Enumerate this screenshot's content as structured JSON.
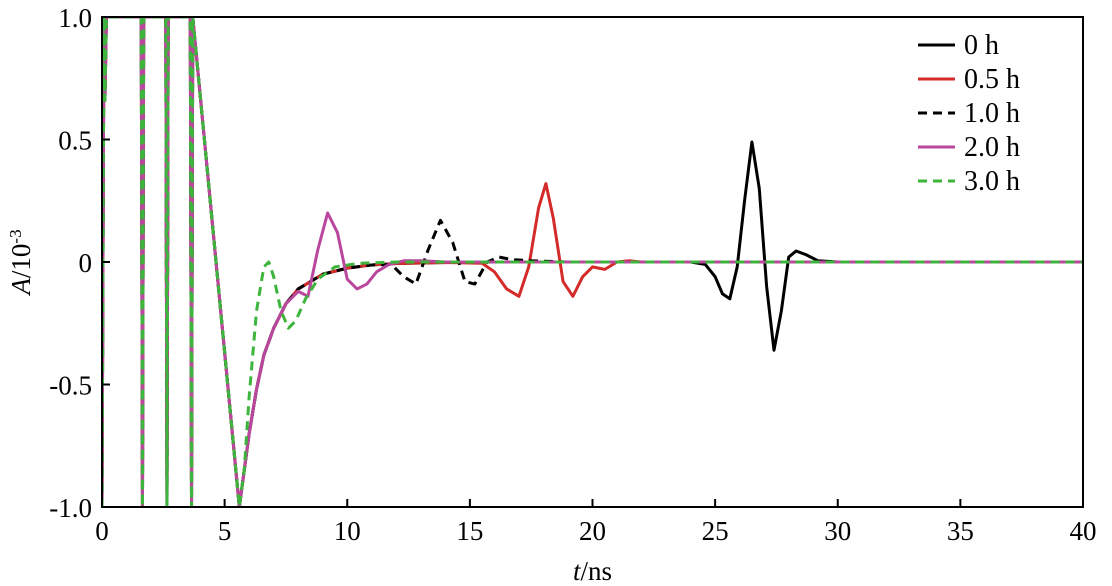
{
  "chart_data": {
    "type": "line",
    "xlabel_var": "t",
    "xlabel_unit": "/ns",
    "ylabel_var": "A",
    "ylabel_unit": "/10",
    "ylabel_exp": "-3",
    "xlim": [
      0,
      40
    ],
    "ylim": [
      -1.0,
      1.0
    ],
    "xticks": [
      0,
      5,
      10,
      15,
      20,
      25,
      30,
      35,
      40
    ],
    "xtick_labels": [
      "0",
      "5",
      "10",
      "15",
      "20",
      "25",
      "30",
      "35",
      "40"
    ],
    "yticks": [
      -1.0,
      -0.5,
      0,
      0.5,
      1.0
    ],
    "ytick_labels": [
      "-1.0",
      "-0.5",
      "0",
      "0.5",
      "1.0"
    ],
    "grid": false,
    "legend_position": "top-right",
    "series": [
      {
        "name": "0 h",
        "color": "#000000",
        "dash": "solid",
        "x": [
          0,
          0.08,
          0.12,
          0.18,
          1.6,
          1.65,
          1.7,
          2.6,
          2.65,
          2.7,
          3.6,
          3.65,
          3.7,
          5.6,
          5.8,
          6.0,
          6.3,
          6.6,
          7.0,
          7.5,
          8.0,
          8.5,
          9.0,
          10.0,
          11.0,
          12.0,
          14.0,
          16.0,
          18.0,
          20.0,
          22.0,
          24.0,
          24.6,
          25.0,
          25.3,
          25.6,
          25.9,
          26.2,
          26.5,
          26.8,
          27.1,
          27.4,
          27.7,
          28.0,
          28.3,
          28.7,
          29.2,
          30.0,
          35.0,
          40.0
        ],
        "y": [
          -1.0,
          1.0,
          0.66,
          1.0,
          1.0,
          -1.0,
          1.0,
          1.0,
          -1.0,
          1.0,
          1.0,
          -1.0,
          1.0,
          -1.0,
          -0.85,
          -0.7,
          -0.52,
          -0.38,
          -0.27,
          -0.17,
          -0.11,
          -0.08,
          -0.05,
          -0.025,
          -0.012,
          -0.006,
          -0.002,
          0,
          0,
          0,
          0,
          0,
          -0.01,
          -0.06,
          -0.13,
          -0.15,
          -0.02,
          0.25,
          0.49,
          0.3,
          -0.1,
          -0.36,
          -0.2,
          0.02,
          0.045,
          0.03,
          0.005,
          0,
          0,
          0
        ]
      },
      {
        "name": "0.5 h",
        "color": "#d42a2a",
        "dash": "solid",
        "x": [
          0,
          0.08,
          0.12,
          0.18,
          1.6,
          1.65,
          1.7,
          2.6,
          2.65,
          2.7,
          3.6,
          3.65,
          3.7,
          5.6,
          5.8,
          6.0,
          6.3,
          6.6,
          7.0,
          7.5,
          8.0,
          8.5,
          9.0,
          10.0,
          11.0,
          12.0,
          14.0,
          15.5,
          16.0,
          16.5,
          17.0,
          17.4,
          17.8,
          18.1,
          18.4,
          18.8,
          19.2,
          19.6,
          20.0,
          20.5,
          21.0,
          21.5,
          22.0,
          25.0,
          30.0,
          40.0
        ],
        "y": [
          -1.0,
          1.0,
          0.66,
          1.0,
          1.0,
          -1.0,
          1.0,
          1.0,
          -1.0,
          1.0,
          1.0,
          -1.0,
          1.0,
          -1.0,
          -0.85,
          -0.7,
          -0.52,
          -0.38,
          -0.27,
          -0.17,
          -0.11,
          -0.08,
          -0.05,
          -0.025,
          -0.012,
          -0.006,
          -0.002,
          -0.005,
          -0.04,
          -0.11,
          -0.14,
          -0.02,
          0.22,
          0.32,
          0.18,
          -0.08,
          -0.14,
          -0.06,
          -0.02,
          -0.03,
          0.0,
          0.005,
          0,
          0,
          0,
          0
        ]
      },
      {
        "name": "1.0 h",
        "color": "#000000",
        "dash": "dashed",
        "x": [
          0,
          0.08,
          0.12,
          0.18,
          1.6,
          1.65,
          1.7,
          2.6,
          2.65,
          2.7,
          3.6,
          3.65,
          3.7,
          5.6,
          5.8,
          6.0,
          6.3,
          6.6,
          7.0,
          7.5,
          8.0,
          8.5,
          9.0,
          10.0,
          11.0,
          11.8,
          12.3,
          12.8,
          13.3,
          13.8,
          14.3,
          14.8,
          15.2,
          15.7,
          16.2,
          16.7,
          17.5,
          19.0,
          21.0,
          23.0,
          25.0,
          30.0,
          40.0
        ],
        "y": [
          -1.0,
          1.0,
          0.66,
          1.0,
          1.0,
          -1.0,
          1.0,
          1.0,
          -1.0,
          1.0,
          1.0,
          -1.0,
          1.0,
          -1.0,
          -0.85,
          -0.7,
          -0.52,
          -0.38,
          -0.27,
          -0.17,
          -0.11,
          -0.08,
          -0.05,
          -0.025,
          -0.012,
          -0.01,
          -0.06,
          -0.09,
          0.05,
          0.17,
          0.08,
          -0.08,
          -0.09,
          0.0,
          0.02,
          0.01,
          0.005,
          0.0,
          0.0,
          0.0,
          0,
          0,
          0
        ]
      },
      {
        "name": "2.0 h",
        "color": "#b9479d",
        "dash": "solid",
        "x": [
          0,
          0.08,
          0.12,
          0.18,
          1.6,
          1.65,
          1.7,
          2.6,
          2.65,
          2.7,
          3.6,
          3.65,
          3.7,
          5.6,
          5.8,
          6.0,
          6.3,
          6.6,
          7.0,
          7.5,
          8.0,
          8.4,
          8.8,
          9.2,
          9.6,
          10.0,
          10.4,
          10.8,
          11.2,
          11.7,
          12.3,
          13.0,
          14.0,
          15.0,
          20.0,
          30.0,
          40.0
        ],
        "y": [
          -1.0,
          1.0,
          0.66,
          1.0,
          1.0,
          -1.0,
          1.0,
          1.0,
          -1.0,
          1.0,
          1.0,
          -1.0,
          1.0,
          -1.0,
          -0.85,
          -0.7,
          -0.52,
          -0.38,
          -0.27,
          -0.17,
          -0.12,
          -0.14,
          0.05,
          0.2,
          0.12,
          -0.07,
          -0.11,
          -0.09,
          -0.04,
          -0.01,
          0.005,
          0.005,
          0.0,
          0.0,
          0.0,
          0,
          0
        ]
      },
      {
        "name": "3.0 h",
        "color": "#3db53d",
        "dash": "dashed",
        "x": [
          0,
          0.08,
          0.12,
          0.18,
          1.6,
          1.65,
          1.7,
          2.6,
          2.65,
          2.7,
          3.6,
          3.65,
          3.7,
          5.6,
          5.8,
          6.0,
          6.3,
          6.6,
          6.8,
          7.0,
          7.3,
          7.6,
          7.9,
          8.3,
          8.8,
          9.5,
          10.5,
          12.0,
          14.0,
          20.0,
          30.0,
          40.0
        ],
        "y": [
          -1.0,
          1.0,
          0.66,
          1.0,
          1.0,
          -1.0,
          1.0,
          1.0,
          -1.0,
          1.0,
          1.0,
          -1.0,
          1.0,
          -1.0,
          -0.85,
          -0.55,
          -0.2,
          -0.02,
          0.0,
          -0.06,
          -0.2,
          -0.27,
          -0.24,
          -0.15,
          -0.07,
          -0.02,
          -0.005,
          0,
          0,
          0,
          0,
          0
        ]
      }
    ]
  }
}
